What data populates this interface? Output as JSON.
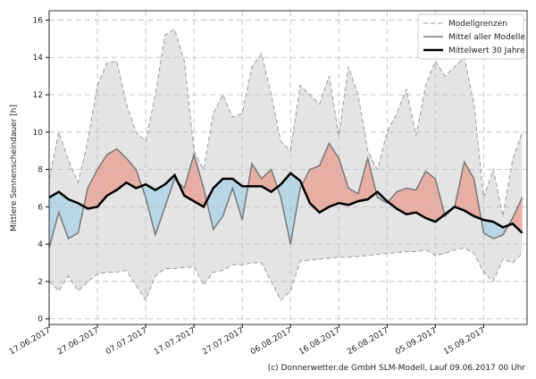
{
  "chart_data": {
    "type": "line",
    "ylabel": "Mittlere Sonnenscheindauer [h]",
    "footer": "(c) Donnerwetter.de GmbH SLM-Modell, Lauf 09.06.2017 00 Uhr",
    "x": [
      "2017-06-17",
      "2017-06-19",
      "2017-06-21",
      "2017-06-23",
      "2017-06-25",
      "2017-06-27",
      "2017-06-29",
      "2017-07-01",
      "2017-07-03",
      "2017-07-05",
      "2017-07-07",
      "2017-07-09",
      "2017-07-11",
      "2017-07-13",
      "2017-07-15",
      "2017-07-17",
      "2017-07-19",
      "2017-07-21",
      "2017-07-23",
      "2017-07-25",
      "2017-07-27",
      "2017-07-29",
      "2017-07-31",
      "2017-08-02",
      "2017-08-04",
      "2017-08-06",
      "2017-08-08",
      "2017-08-10",
      "2017-08-12",
      "2017-08-14",
      "2017-08-16",
      "2017-08-18",
      "2017-08-20",
      "2017-08-22",
      "2017-08-24",
      "2017-08-26",
      "2017-08-28",
      "2017-08-30",
      "2017-09-01",
      "2017-09-03",
      "2017-09-05",
      "2017-09-07",
      "2017-09-09",
      "2017-09-11",
      "2017-09-13",
      "2017-09-15",
      "2017-09-17",
      "2017-09-19",
      "2017-09-21",
      "2017-09-23"
    ],
    "series": [
      {
        "name": "Modellgrenzen",
        "color": "#999999",
        "values": [
          7.5,
          10.0,
          8.5,
          7.3,
          9.5,
          12.5,
          13.7,
          13.8,
          11.5,
          10.0,
          9.5,
          12.0,
          15.2,
          15.5,
          13.8,
          9.0,
          8.0,
          11.0,
          12.0,
          10.8,
          11.0,
          13.5,
          14.2,
          12.0,
          9.5,
          9.0,
          12.5,
          12.0,
          11.5,
          13.0,
          9.8,
          13.5,
          12.0,
          9.0,
          8.0,
          10.0,
          11.0,
          12.3,
          9.8,
          12.5,
          13.8,
          13.0,
          13.5,
          14.0,
          11.5,
          6.5,
          8.0,
          5.5,
          8.5,
          10.0
        ]
      },
      {
        "name": "Mittel aller Modelle",
        "color": "#777777",
        "values": [
          3.8,
          5.7,
          4.3,
          4.6,
          7.0,
          8.0,
          8.8,
          9.1,
          8.6,
          8.0,
          6.5,
          4.5,
          6.0,
          7.5,
          7.0,
          8.8,
          7.0,
          4.8,
          5.5,
          7.0,
          5.3,
          8.3,
          7.5,
          8.0,
          6.5,
          4.0,
          7.0,
          8.0,
          8.2,
          9.4,
          8.6,
          7.0,
          6.7,
          8.6,
          6.5,
          6.2,
          6.8,
          7.0,
          6.9,
          7.9,
          7.5,
          5.5,
          6.0,
          8.4,
          7.5,
          4.6,
          4.3,
          4.5,
          5.4,
          6.5
        ]
      },
      {
        "name": "Mittelwert 30 Jahre",
        "color": "#000000",
        "values": [
          6.5,
          6.8,
          6.4,
          6.2,
          5.9,
          6.0,
          6.6,
          6.9,
          7.3,
          7.0,
          7.2,
          6.9,
          7.2,
          7.7,
          6.6,
          6.3,
          6.0,
          7.0,
          7.5,
          7.5,
          7.1,
          7.1,
          7.1,
          6.8,
          7.2,
          7.8,
          7.4,
          6.2,
          5.7,
          6.0,
          6.2,
          6.1,
          6.3,
          6.4,
          6.8,
          6.3,
          5.9,
          5.6,
          5.7,
          5.4,
          5.2,
          5.6,
          6.0,
          5.8,
          5.5,
          5.3,
          5.2,
          4.9,
          5.1,
          4.6
        ]
      }
    ],
    "lower": [
      2.0,
      1.5,
      2.3,
      1.5,
      2.0,
      2.4,
      2.5,
      2.5,
      2.6,
      1.8,
      1.0,
      2.3,
      2.7,
      2.7,
      2.75,
      2.8,
      1.8,
      2.5,
      2.6,
      2.9,
      2.9,
      3.0,
      3.0,
      2.0,
      1.0,
      1.5,
      3.1,
      3.15,
      3.2,
      3.25,
      3.3,
      3.3,
      3.35,
      3.4,
      3.45,
      3.5,
      3.55,
      3.6,
      3.6,
      3.7,
      3.4,
      3.5,
      3.7,
      3.8,
      3.5,
      2.5,
      2.0,
      3.2,
      3.0,
      3.5
    ],
    "band_color": "#e4e4e4",
    "above_color": "#e8aea4",
    "below_color": "#b7d7e6",
    "xlim": [
      "2017-06-17",
      "2017-09-24"
    ],
    "xticks": [
      {
        "value": "2017-06-17",
        "label": "17.06.2017"
      },
      {
        "value": "2017-06-27",
        "label": "27.06.2017"
      },
      {
        "value": "2017-07-07",
        "label": "07.07.2017"
      },
      {
        "value": "2017-07-17",
        "label": "17.07.2017"
      },
      {
        "value": "2017-07-27",
        "label": "27.07.2017"
      },
      {
        "value": "2017-08-06",
        "label": "06.08.2017"
      },
      {
        "value": "2017-08-16",
        "label": "16.08.2017"
      },
      {
        "value": "2017-08-26",
        "label": "26.08.2017"
      },
      {
        "value": "2017-09-05",
        "label": "05.09.2017"
      },
      {
        "value": "2017-09-15",
        "label": "15.09.2017"
      }
    ],
    "ylim": [
      -0.3,
      16.5
    ],
    "yticks": [
      0,
      2,
      4,
      6,
      8,
      10,
      12,
      14,
      16
    ],
    "grid": true,
    "legend": "upper right"
  }
}
